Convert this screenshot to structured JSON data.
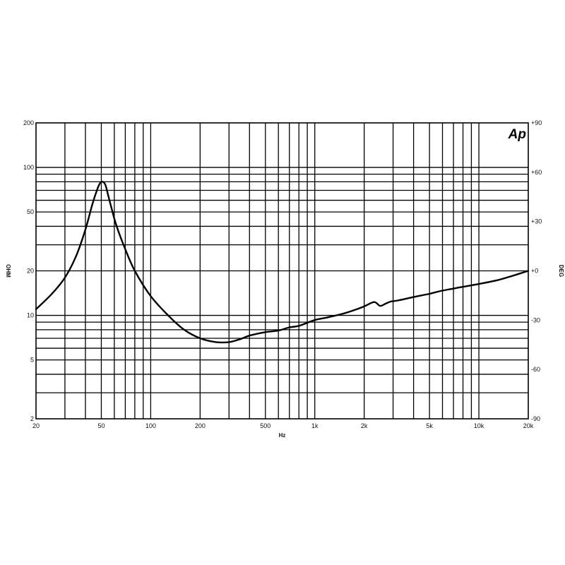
{
  "chart_data": {
    "type": "line",
    "title": "",
    "logo": "Ap",
    "xlabel": "Hz",
    "ylabel_left": "OHM",
    "ylabel_right": "DEG",
    "x_scale": "log",
    "y_scale": "log",
    "xlim": [
      20,
      20000
    ],
    "ylim_left": [
      2,
      200
    ],
    "ylim_right": [
      -90,
      90
    ],
    "x_ticks": [
      {
        "value": 20,
        "label": "20"
      },
      {
        "value": 50,
        "label": "50"
      },
      {
        "value": 100,
        "label": "100"
      },
      {
        "value": 200,
        "label": "200"
      },
      {
        "value": 500,
        "label": "500"
      },
      {
        "value": 1000,
        "label": "1k"
      },
      {
        "value": 2000,
        "label": "2k"
      },
      {
        "value": 5000,
        "label": "5k"
      },
      {
        "value": 10000,
        "label": "10k"
      },
      {
        "value": 20000,
        "label": "20k"
      }
    ],
    "y_ticks_left": [
      {
        "value": 2,
        "label": "2"
      },
      {
        "value": 5,
        "label": "5"
      },
      {
        "value": 10,
        "label": "10"
      },
      {
        "value": 20,
        "label": "20"
      },
      {
        "value": 50,
        "label": "50"
      },
      {
        "value": 100,
        "label": "100"
      },
      {
        "value": 200,
        "label": "200"
      }
    ],
    "y_ticks_right": [
      {
        "value": -90,
        "label": "-90"
      },
      {
        "value": -60,
        "label": "-60"
      },
      {
        "value": -30,
        "label": "-30"
      },
      {
        "value": 0,
        "label": "+0"
      },
      {
        "value": 30,
        "label": "+30"
      },
      {
        "value": 60,
        "label": "+60"
      },
      {
        "value": 90,
        "label": "+90"
      }
    ],
    "grid": true,
    "series": [
      {
        "color": "#000000",
        "x": [
          20,
          25,
          30,
          35,
          40,
          44,
          47,
          49,
          51,
          53,
          55,
          58,
          62,
          70,
          80,
          100,
          130,
          160,
          200,
          250,
          300,
          350,
          400,
          500,
          600,
          700,
          800,
          1000,
          1200,
          1500,
          1800,
          2000,
          2300,
          2500,
          2700,
          2900,
          3200,
          4000,
          5000,
          6000,
          8000,
          10000,
          13000,
          16000,
          20000
        ],
        "y": [
          11,
          14,
          18,
          25,
          38,
          56,
          70,
          78,
          80,
          76,
          65,
          52,
          40,
          28,
          20,
          13.5,
          9.8,
          8.0,
          7.0,
          6.6,
          6.6,
          6.9,
          7.3,
          7.7,
          7.9,
          8.3,
          8.5,
          9.3,
          9.7,
          10.3,
          11.0,
          11.5,
          12.3,
          11.6,
          12.0,
          12.4,
          12.6,
          13.3,
          14.0,
          14.7,
          15.6,
          16.3,
          17.3,
          18.5,
          20.0
        ]
      }
    ]
  }
}
